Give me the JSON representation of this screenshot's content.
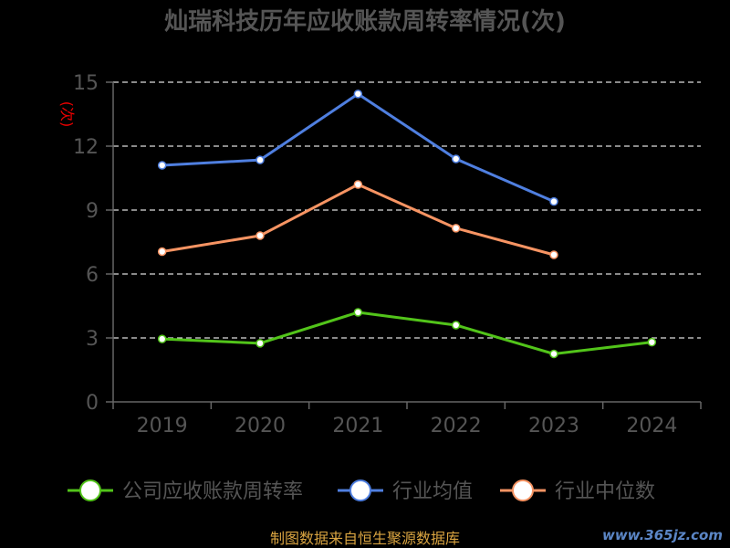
{
  "chart_data": {
    "type": "line",
    "title": "灿瑞科技历年应收账款周转率情况(次)",
    "ylabel": "(次)",
    "xlabel": "",
    "categories": [
      "2019",
      "2020",
      "2021",
      "2022",
      "2023",
      "2024"
    ],
    "ylim": [
      0,
      15
    ],
    "yticks": [
      0,
      3,
      6,
      9,
      12,
      15
    ],
    "grid": true,
    "legend_position": "bottom",
    "series": [
      {
        "name": "公司应收账款周转率",
        "color": "#52c41a",
        "values": [
          2.95,
          2.75,
          4.2,
          3.6,
          2.25,
          2.8
        ]
      },
      {
        "name": "行业均值",
        "color": "#4f7fe0",
        "values": [
          11.1,
          11.35,
          14.45,
          11.4,
          9.4,
          null
        ]
      },
      {
        "name": "行业中位数",
        "color": "#f79463",
        "values": [
          7.05,
          7.8,
          10.2,
          8.15,
          6.9,
          null
        ]
      }
    ]
  },
  "source_note": "制图数据来自恒生聚源数据库",
  "watermark": "www.365jz.com"
}
